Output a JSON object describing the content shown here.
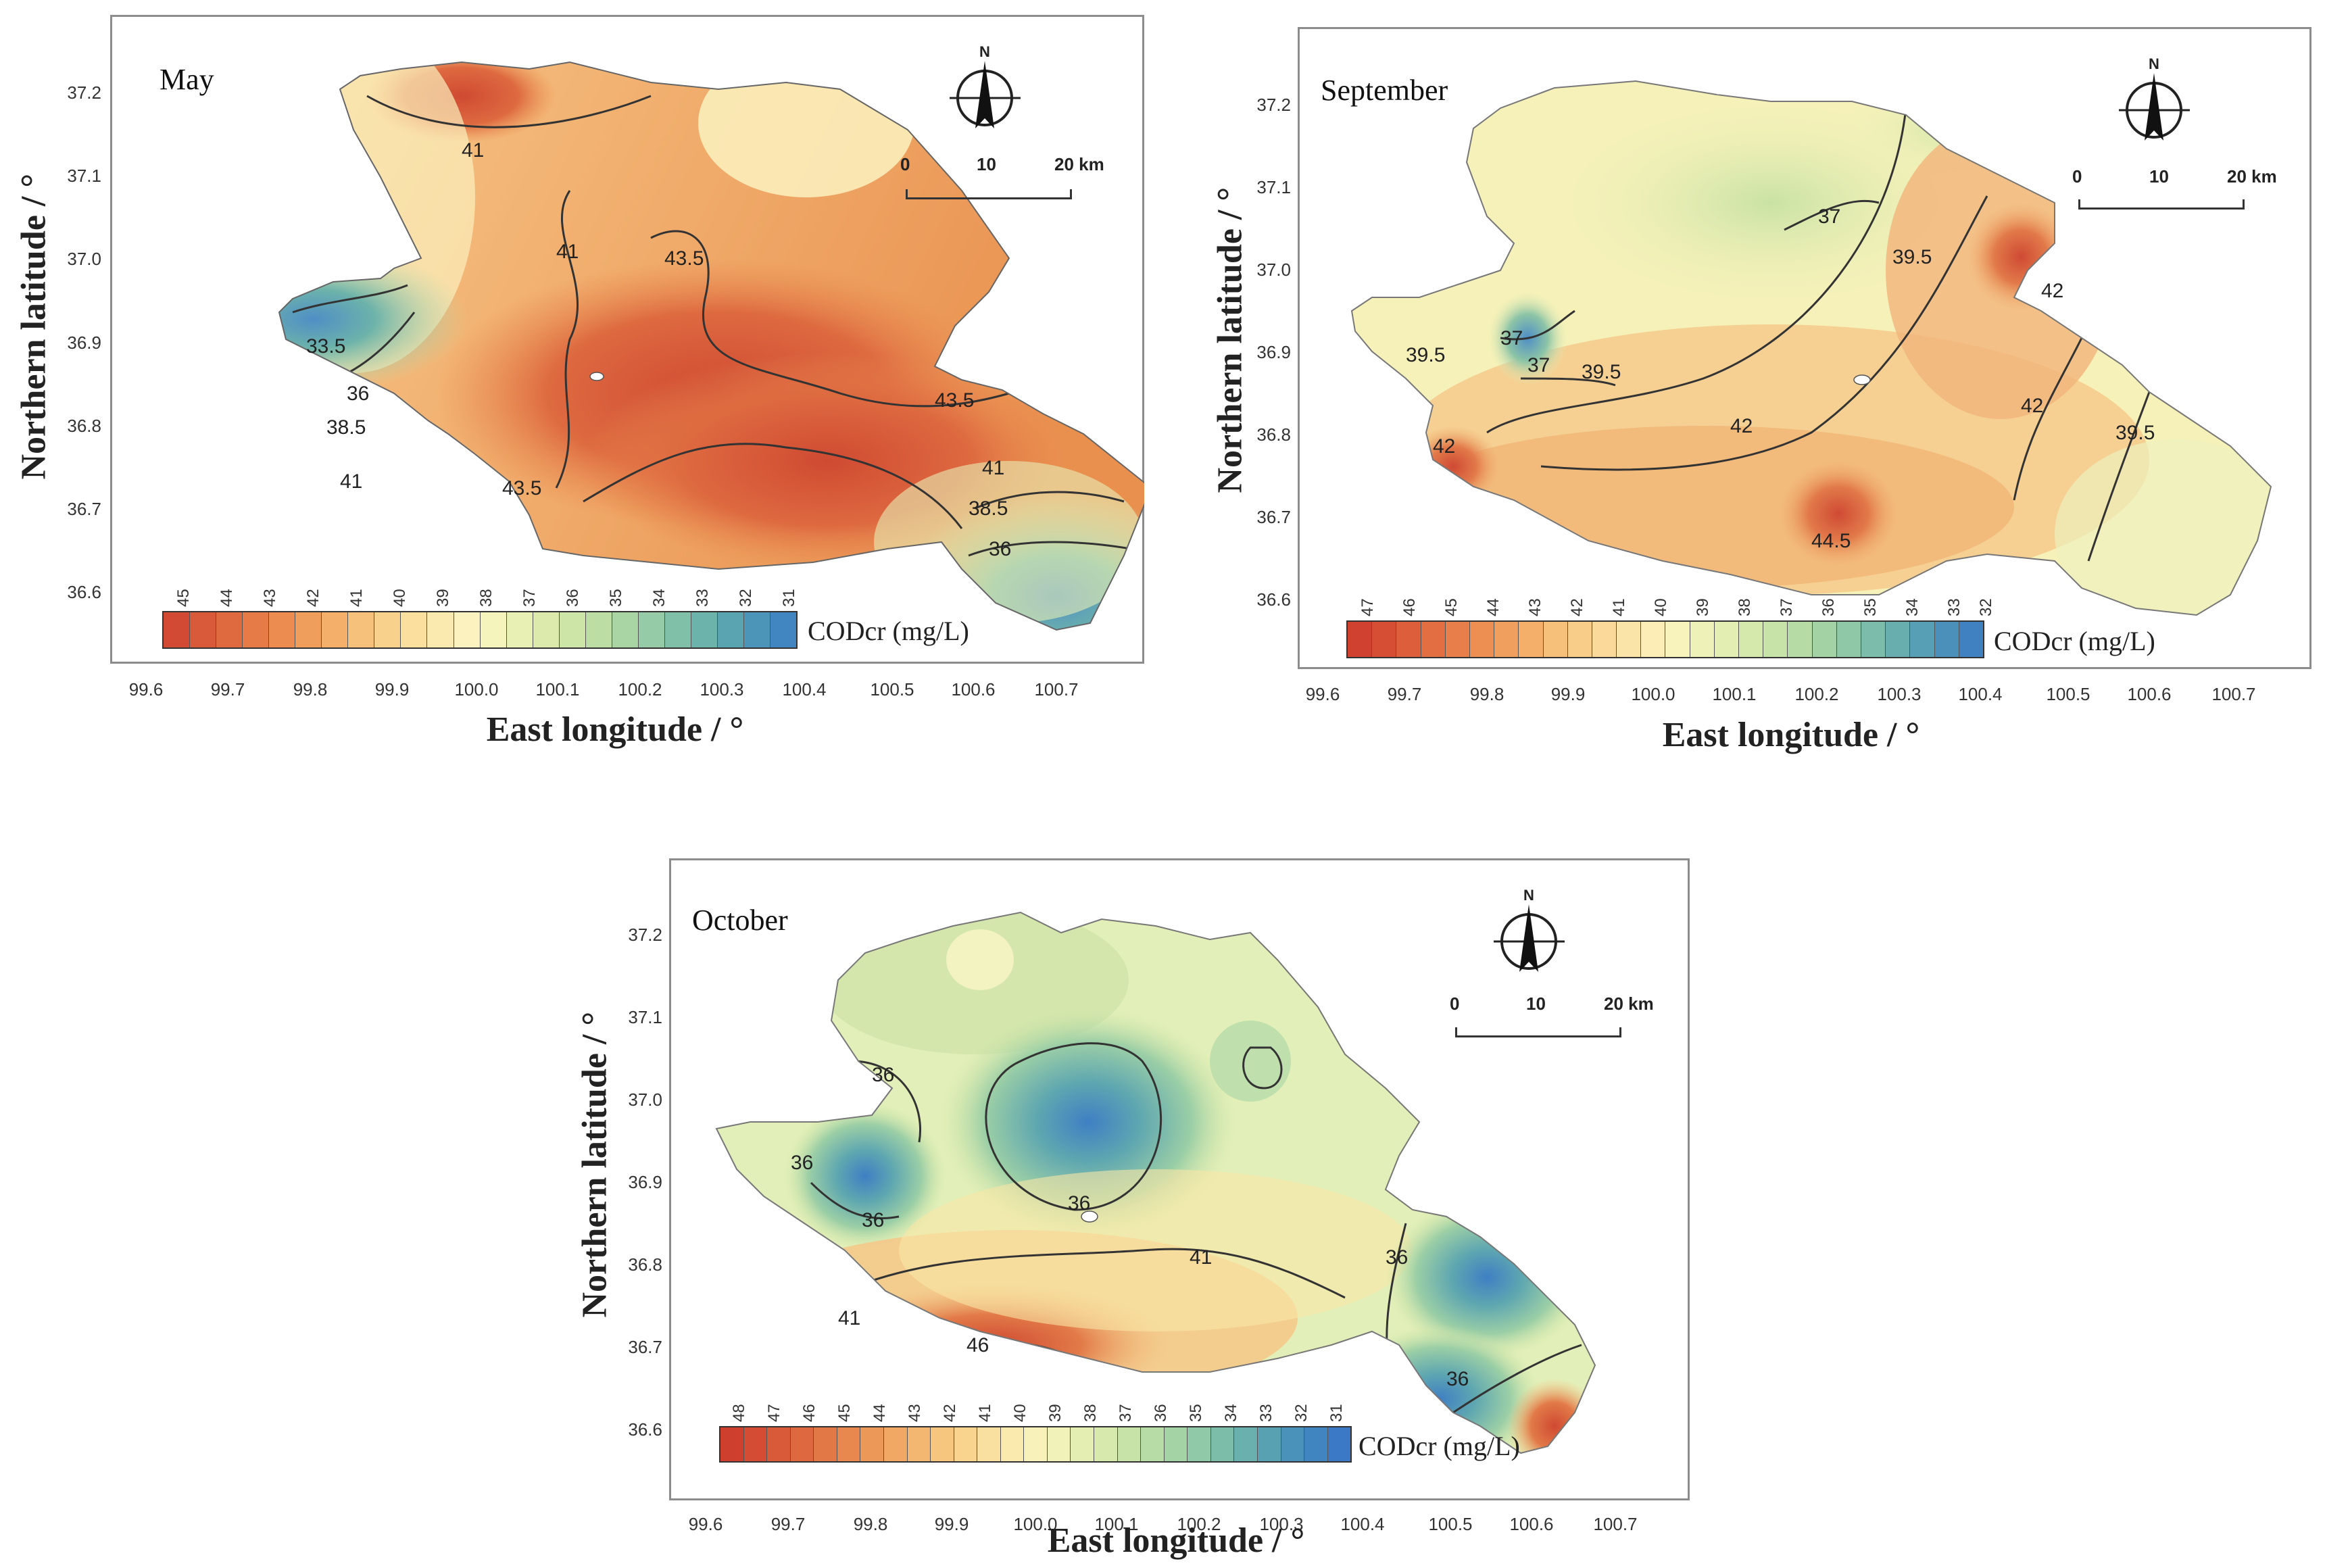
{
  "panels": [
    {
      "title": "May",
      "ylabel": "Northern latitude / °",
      "xlabel": "East longitude / °",
      "yticks": [
        "37.2",
        "37.1",
        "37.0",
        "36.9",
        "36.8",
        "36.7",
        "36.6"
      ],
      "xticks": [
        "99.6",
        "99.7",
        "99.8",
        "99.9",
        "100.0",
        "100.1",
        "100.2",
        "100.3",
        "100.4",
        "100.5",
        "100.6",
        "100.7"
      ],
      "colorbar_ticks": [
        "45",
        "44",
        "43",
        "42",
        "41",
        "40",
        "39",
        "38",
        "37",
        "36",
        "35",
        "34",
        "33",
        "32",
        "31"
      ],
      "colorbar_label": "CODcr (mg/L)",
      "contour_labels": [
        "41",
        "41",
        "43.5",
        "33.5",
        "36",
        "38.5",
        "41",
        "43.5",
        "43.5",
        "41",
        "38.5",
        "36"
      ],
      "scale": {
        "north": "N",
        "zero": "0",
        "mid": "10",
        "end": "20 km"
      }
    },
    {
      "title": "September",
      "ylabel": "Northern latitude / °",
      "xlabel": "East longitude / °",
      "yticks": [
        "37.2",
        "37.1",
        "37.0",
        "36.9",
        "36.8",
        "36.7",
        "36.6"
      ],
      "xticks": [
        "99.6",
        "99.7",
        "99.8",
        "99.9",
        "100.0",
        "100.1",
        "100.2",
        "100.3",
        "100.4",
        "100.5",
        "100.6",
        "100.7"
      ],
      "colorbar_ticks": [
        "47",
        "46",
        "45",
        "44",
        "43",
        "42",
        "41",
        "40",
        "39",
        "38",
        "37",
        "36",
        "35",
        "34",
        "33",
        "32"
      ],
      "colorbar_label": "CODcr (mg/L)",
      "contour_labels": [
        "37",
        "39.5",
        "42",
        "37",
        "37",
        "39.5",
        "39.5",
        "42",
        "42",
        "44.5",
        "42",
        "39.5"
      ],
      "scale": {
        "north": "N",
        "zero": "0",
        "mid": "10",
        "end": "20 km"
      }
    },
    {
      "title": "October",
      "ylabel": "Northern latitude / °",
      "xlabel": "East longitude / °",
      "yticks": [
        "37.2",
        "37.1",
        "37.0",
        "36.9",
        "36.8",
        "36.7",
        "36.6"
      ],
      "xticks": [
        "99.6",
        "99.7",
        "99.8",
        "99.9",
        "100.0",
        "100.1",
        "100.2",
        "100.3",
        "100.4",
        "100.5",
        "100.6",
        "100.7"
      ],
      "colorbar_ticks": [
        "48",
        "47",
        "46",
        "45",
        "44",
        "43",
        "42",
        "41",
        "40",
        "39",
        "38",
        "37",
        "36",
        "35",
        "34",
        "33",
        "32",
        "31"
      ],
      "colorbar_label": "CODcr (mg/L)",
      "contour_labels": [
        "36",
        "36",
        "36",
        "36",
        "41",
        "41",
        "46",
        "36",
        "36"
      ],
      "scale": {
        "north": "N",
        "zero": "0",
        "mid": "10",
        "end": "20 km"
      }
    }
  ],
  "colors": {
    "high": "#d03c2c",
    "midhigh": "#f0a05c",
    "mid": "#fbf2b4",
    "midlow": "#a9d6a9",
    "low": "#3c7fc4"
  }
}
